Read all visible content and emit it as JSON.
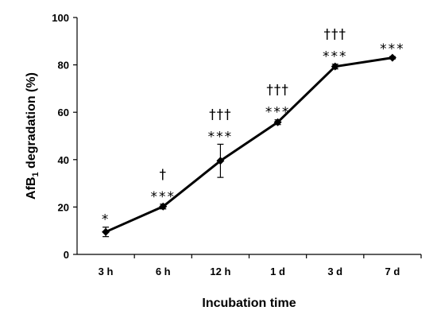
{
  "chart_data": {
    "type": "line",
    "title": "",
    "xlabel": "Incubation time",
    "ylabel": {
      "prefix": "AfB",
      "subscript": "1",
      "suffix": " degradation (%)"
    },
    "categories": [
      "3 h",
      "6 h",
      "12 h",
      "1 d",
      "3 d",
      "7 d"
    ],
    "ylim": [
      0,
      100
    ],
    "yticks": [
      0,
      20,
      40,
      60,
      80,
      100
    ],
    "grid": false,
    "legend": "none",
    "series": [
      {
        "values": [
          9.5,
          20.2,
          39.5,
          55.8,
          79.3,
          83.0
        ],
        "errors": [
          2.0,
          1.0,
          7.0,
          1.0,
          1.0,
          0.5
        ],
        "color": "#000000"
      }
    ],
    "annotations": [
      {
        "category": "3 h",
        "stars": "*",
        "daggers": ""
      },
      {
        "category": "6 h",
        "stars": "***",
        "daggers": "†"
      },
      {
        "category": "12 h",
        "stars": "***",
        "daggers": "†††"
      },
      {
        "category": "1 d",
        "stars": "***",
        "daggers": "†††"
      },
      {
        "category": "3 d",
        "stars": "***",
        "daggers": "†††"
      },
      {
        "category": "7 d",
        "stars": "***",
        "daggers": ""
      }
    ]
  }
}
